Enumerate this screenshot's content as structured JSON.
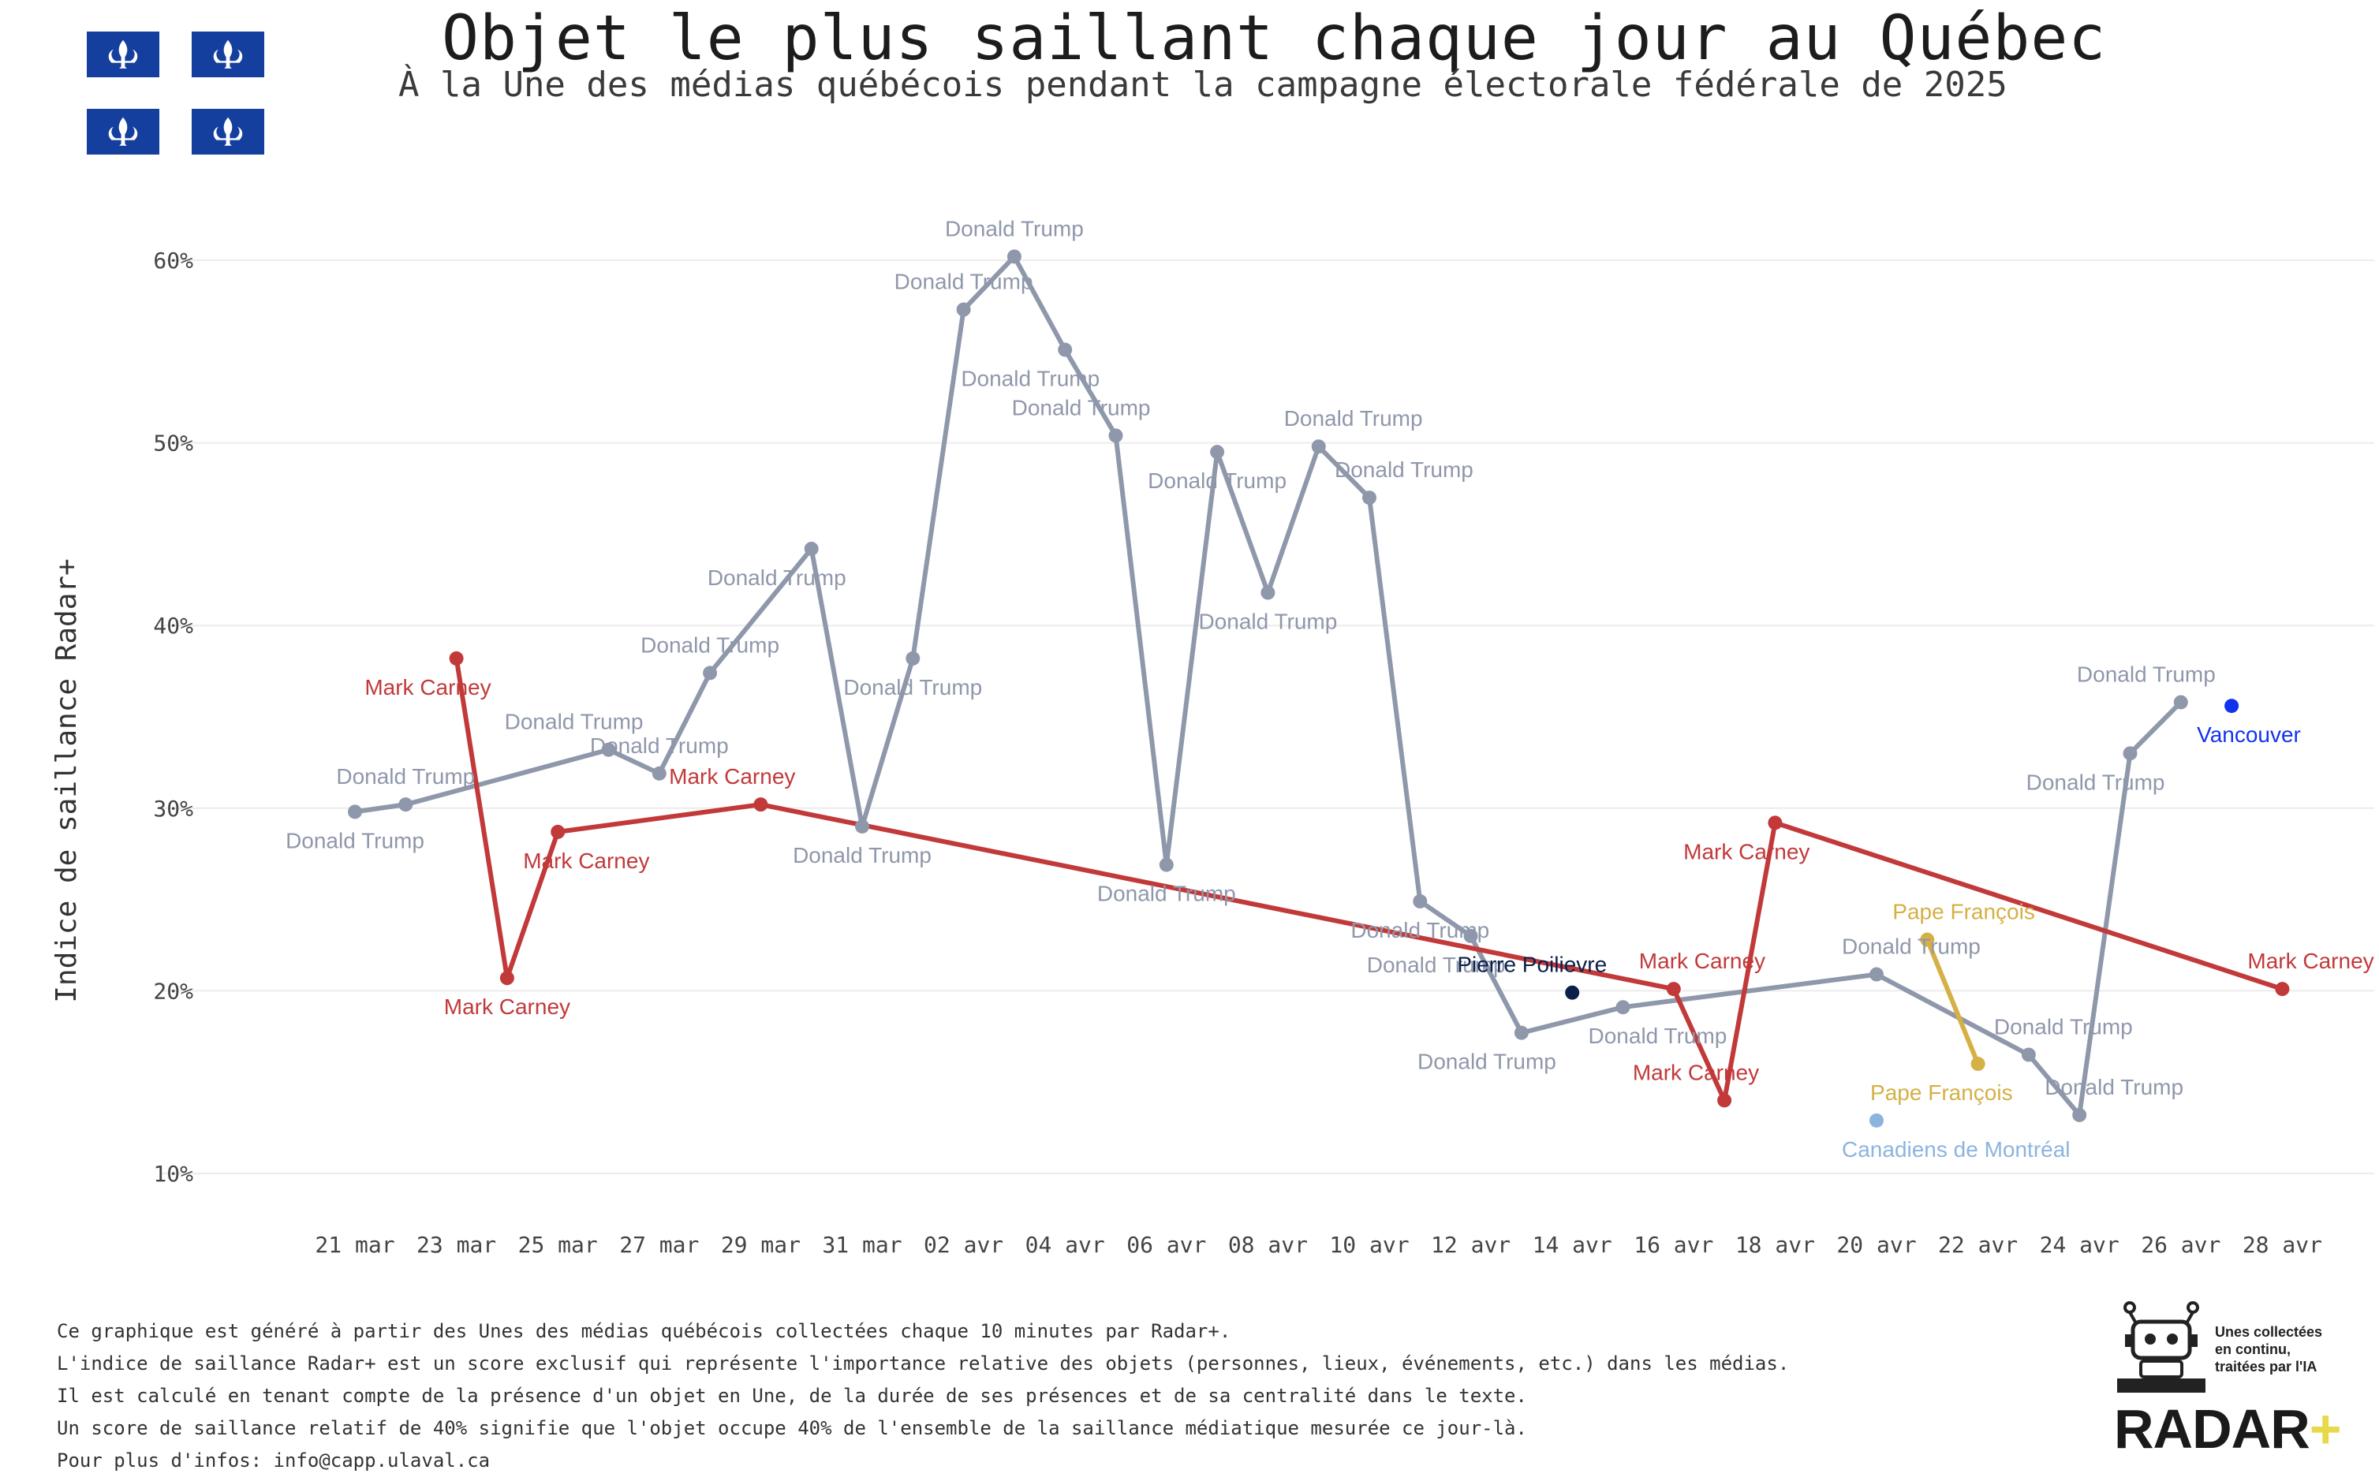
{
  "title": "Objet le plus saillant chaque jour au Québec",
  "subtitle": "À la Une des médias québécois pendant la campagne électorale fédérale de 2025",
  "footer": {
    "lines": [
      "Ce graphique est généré à partir des Unes des médias québécois collectées chaque 10 minutes par Radar+.",
      "L'indice de saillance Radar+ est un score exclusif qui représente l'importance relative des objets (personnes, lieux, événements, etc.) dans les médias.",
      "Il est calculé en tenant compte de la présence d'un objet en Une, de la durée de ses présences et de sa centralité dans le texte.",
      "Un score de saillance relatif de 40% signifie que l'objet occupe 40% de l'ensemble de la saillance médiatique mesurée ce jour-là.",
      "Pour plus d'infos: info@capp.ulaval.ca"
    ]
  },
  "logo": {
    "brand": "RADAR",
    "plus": "+",
    "tagline": [
      "Unes collectées",
      "en continu,",
      "traitées par l'IA"
    ]
  },
  "colors": {
    "trump": "#8f97ab",
    "carney": "#c2393a",
    "poilievre": "#0b1f4a",
    "pape": "#d4b045",
    "vancouver": "#1133ee",
    "canadiens": "#8cb4e0",
    "flag_blue": "#143f9e"
  },
  "chart_data": {
    "type": "line",
    "ylabel": "Indice de saillance Radar+",
    "xlabel": "",
    "ylim": [
      0.1,
      0.6
    ],
    "yticks": [
      "10%",
      "20%",
      "30%",
      "40%",
      "50%",
      "60%"
    ],
    "ytick_values": [
      0.1,
      0.2,
      0.3,
      0.4,
      0.5,
      0.6
    ],
    "x_start_day": 21,
    "xticks": [
      {
        "day": 0,
        "label": "21 mar"
      },
      {
        "day": 2,
        "label": "23 mar"
      },
      {
        "day": 4,
        "label": "25 mar"
      },
      {
        "day": 6,
        "label": "27 mar"
      },
      {
        "day": 8,
        "label": "29 mar"
      },
      {
        "day": 10,
        "label": "31 mar"
      },
      {
        "day": 12,
        "label": "02 avr"
      },
      {
        "day": 14,
        "label": "04 avr"
      },
      {
        "day": 16,
        "label": "06 avr"
      },
      {
        "day": 18,
        "label": "08 avr"
      },
      {
        "day": 20,
        "label": "10 avr"
      },
      {
        "day": 22,
        "label": "12 avr"
      },
      {
        "day": 24,
        "label": "14 avr"
      },
      {
        "day": 26,
        "label": "16 avr"
      },
      {
        "day": 28,
        "label": "18 avr"
      },
      {
        "day": 30,
        "label": "20 avr"
      },
      {
        "day": 32,
        "label": "22 avr"
      },
      {
        "day": 34,
        "label": "24 avr"
      },
      {
        "day": 36,
        "label": "26 avr"
      },
      {
        "day": 38,
        "label": "28 avr"
      }
    ],
    "series": [
      {
        "name": "Donald Trump",
        "color": "#8f97ab",
        "points": [
          {
            "day": 0,
            "value": 0.298
          },
          {
            "day": 1,
            "value": 0.302
          },
          {
            "day": 5,
            "value": 0.332
          },
          {
            "day": 6,
            "value": 0.319
          },
          {
            "day": 7,
            "value": 0.374
          },
          {
            "day": 9,
            "value": 0.442
          },
          {
            "day": 10,
            "value": 0.29
          },
          {
            "day": 11,
            "value": 0.382
          },
          {
            "day": 12,
            "value": 0.573
          },
          {
            "day": 13,
            "value": 0.602
          },
          {
            "day": 14,
            "value": 0.551
          },
          {
            "day": 15,
            "value": 0.504
          },
          {
            "day": 16,
            "value": 0.269
          },
          {
            "day": 17,
            "value": 0.495
          },
          {
            "day": 18,
            "value": 0.418
          },
          {
            "day": 19,
            "value": 0.498
          },
          {
            "day": 20,
            "value": 0.47
          },
          {
            "day": 21,
            "value": 0.249
          },
          {
            "day": 22,
            "value": 0.23
          },
          {
            "day": 23,
            "value": 0.177
          },
          {
            "day": 25,
            "value": 0.191
          },
          {
            "day": 30,
            "value": 0.209
          },
          {
            "day": 33,
            "value": 0.165
          },
          {
            "day": 34,
            "value": 0.132
          },
          {
            "day": 35,
            "value": 0.33
          },
          {
            "day": 36,
            "value": 0.358
          }
        ]
      },
      {
        "name": "Mark Carney",
        "color": "#c2393a",
        "points": [
          {
            "day": 2,
            "value": 0.382
          },
          {
            "day": 3,
            "value": 0.207
          },
          {
            "day": 4,
            "value": 0.287
          },
          {
            "day": 8,
            "value": 0.302
          },
          {
            "day": 26,
            "value": 0.201
          },
          {
            "day": 27,
            "value": 0.14
          },
          {
            "day": 28,
            "value": 0.292
          },
          {
            "day": 38,
            "value": 0.201
          }
        ]
      },
      {
        "name": "Pape François",
        "color": "#d4b045",
        "points": [
          {
            "day": 31,
            "value": 0.228
          },
          {
            "day": 32,
            "value": 0.16
          }
        ]
      },
      {
        "name": "Pierre Poilievre",
        "color": "#0b1f4a",
        "points": [
          {
            "day": 24,
            "value": 0.199
          }
        ]
      },
      {
        "name": "Canadiens de Montréal",
        "color": "#8cb4e0",
        "points": [
          {
            "day": 30,
            "value": 0.129
          }
        ]
      },
      {
        "name": "Vancouver",
        "color": "#1133ee",
        "points": [
          {
            "day": 37,
            "value": 0.356
          }
        ]
      }
    ],
    "annotations": [
      {
        "text": "Donald Trump",
        "day": 0,
        "value": 0.298,
        "series": 0,
        "pos": "below"
      },
      {
        "text": "Donald Trump",
        "day": 1,
        "value": 0.302,
        "series": 0,
        "pos": "above"
      },
      {
        "text": "Donald Trump",
        "day": 5,
        "value": 0.332,
        "series": 0,
        "pos": "above-left"
      },
      {
        "text": "Donald Trump",
        "day": 6,
        "value": 0.319,
        "series": 0,
        "pos": "above"
      },
      {
        "text": "Donald Trump",
        "day": 7,
        "value": 0.374,
        "series": 0,
        "pos": "above"
      },
      {
        "text": "Donald Trump",
        "day": 9,
        "value": 0.442,
        "series": 0,
        "pos": "below-left"
      },
      {
        "text": "Donald Trump",
        "day": 10,
        "value": 0.29,
        "series": 0,
        "pos": "below"
      },
      {
        "text": "Donald Trump",
        "day": 11,
        "value": 0.382,
        "series": 0,
        "pos": "below"
      },
      {
        "text": "Donald Trump",
        "day": 12,
        "value": 0.573,
        "series": 0,
        "pos": "above"
      },
      {
        "text": "Donald Trump",
        "day": 13,
        "value": 0.602,
        "series": 0,
        "pos": "above"
      },
      {
        "text": "Donald Trump",
        "day": 14,
        "value": 0.551,
        "series": 0,
        "pos": "below-left"
      },
      {
        "text": "Donald Trump",
        "day": 15,
        "value": 0.504,
        "series": 0,
        "pos": "above-left"
      },
      {
        "text": "Donald Trump",
        "day": 16,
        "value": 0.269,
        "series": 0,
        "pos": "below"
      },
      {
        "text": "Donald Trump",
        "day": 17,
        "value": 0.495,
        "series": 0,
        "pos": "below"
      },
      {
        "text": "Donald Trump",
        "day": 18,
        "value": 0.418,
        "series": 0,
        "pos": "below"
      },
      {
        "text": "Donald Trump",
        "day": 19,
        "value": 0.498,
        "series": 0,
        "pos": "above-right"
      },
      {
        "text": "Donald Trump",
        "day": 20,
        "value": 0.47,
        "series": 0,
        "pos": "above-right"
      },
      {
        "text": "Donald Trump",
        "day": 21,
        "value": 0.249,
        "series": 0,
        "pos": "below"
      },
      {
        "text": "Donald Trump",
        "day": 22,
        "value": 0.23,
        "series": 0,
        "pos": "below-left"
      },
      {
        "text": "Donald Trump",
        "day": 23,
        "value": 0.177,
        "series": 0,
        "pos": "below-left"
      },
      {
        "text": "Donald Trump",
        "day": 25,
        "value": 0.191,
        "series": 0,
        "pos": "below-right"
      },
      {
        "text": "Donald Trump",
        "day": 30,
        "value": 0.209,
        "series": 0,
        "pos": "above-right"
      },
      {
        "text": "Donald Trump",
        "day": 33,
        "value": 0.165,
        "series": 0,
        "pos": "above-right"
      },
      {
        "text": "Donald Trump",
        "day": 34,
        "value": 0.132,
        "series": 0,
        "pos": "above-right"
      },
      {
        "text": "Donald Trump",
        "day": 35,
        "value": 0.33,
        "series": 0,
        "pos": "below-left"
      },
      {
        "text": "Donald Trump",
        "day": 36,
        "value": 0.358,
        "series": 0,
        "pos": "above-left"
      },
      {
        "text": "Mark Carney",
        "day": 2,
        "value": 0.382,
        "series": 1,
        "pos": "below-left"
      },
      {
        "text": "Mark Carney",
        "day": 3,
        "value": 0.207,
        "series": 1,
        "pos": "below"
      },
      {
        "text": "Mark Carney",
        "day": 4,
        "value": 0.287,
        "series": 1,
        "pos": "below-right"
      },
      {
        "text": "Mark Carney",
        "day": 8,
        "value": 0.302,
        "series": 1,
        "pos": "above-left"
      },
      {
        "text": "Mark Carney",
        "day": 26,
        "value": 0.201,
        "series": 1,
        "pos": "above-right"
      },
      {
        "text": "Mark Carney",
        "day": 27,
        "value": 0.14,
        "series": 1,
        "pos": "above-left"
      },
      {
        "text": "Mark Carney",
        "day": 28,
        "value": 0.292,
        "series": 1,
        "pos": "below-left"
      },
      {
        "text": "Mark Carney",
        "day": 38,
        "value": 0.201,
        "series": 1,
        "pos": "above-right"
      },
      {
        "text": "Pape François",
        "day": 31,
        "value": 0.228,
        "series": 2,
        "pos": "above-right"
      },
      {
        "text": "Pape François",
        "day": 32,
        "value": 0.16,
        "series": 2,
        "pos": "below-left"
      },
      {
        "text": "Pierre Poilievre",
        "day": 24,
        "value": 0.199,
        "series": 3,
        "pos": "above-left"
      },
      {
        "text": "Canadiens de Montréal",
        "day": 30,
        "value": 0.129,
        "series": 4,
        "pos": "below-right"
      },
      {
        "text": "Vancouver",
        "day": 37,
        "value": 0.356,
        "series": 5,
        "pos": "below-right"
      }
    ]
  }
}
